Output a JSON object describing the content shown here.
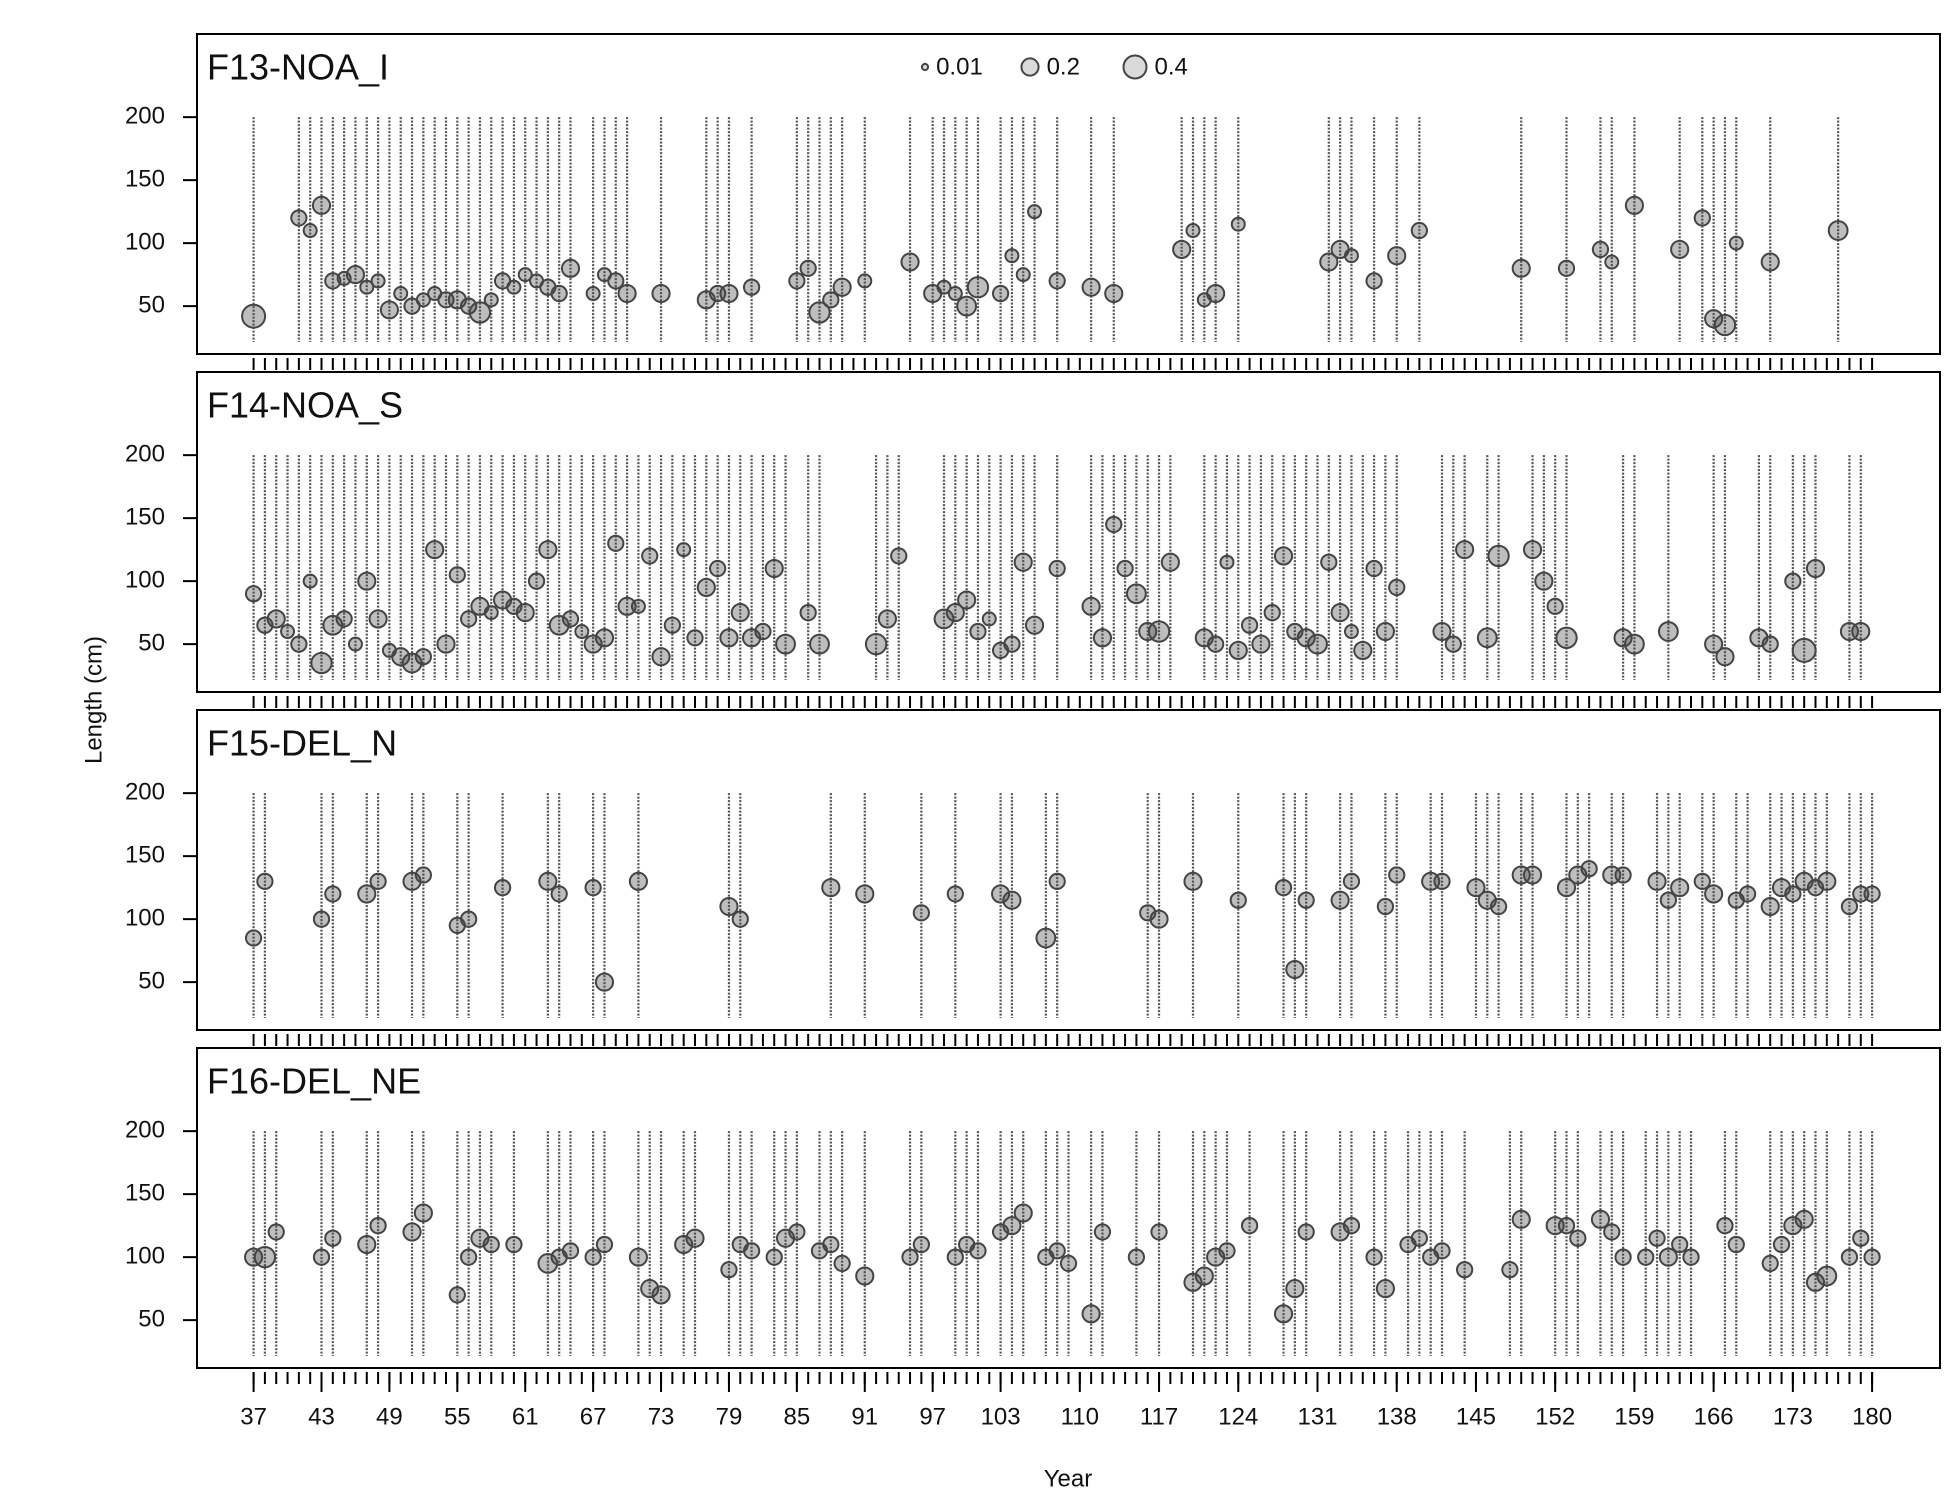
{
  "axes": {
    "xlabel": "Year",
    "ylabel": "Length (cm)",
    "xlim": [
      32,
      186
    ],
    "xticks": [
      37,
      43,
      49,
      55,
      61,
      67,
      73,
      79,
      85,
      91,
      97,
      103,
      110,
      117,
      124,
      131,
      138,
      145,
      152,
      159,
      166,
      173,
      180
    ]
  },
  "chart_data": [
    {
      "type": "bubble",
      "title": "F13-NOA_I",
      "color": "#444444",
      "ylim": [
        12,
        266
      ],
      "yticks": [
        50,
        100,
        150,
        200
      ],
      "legend_sizes": [
        0.01,
        0.2,
        0.4
      ],
      "x": [
        37,
        41,
        42,
        43,
        44,
        45,
        46,
        47,
        48,
        49,
        50,
        51,
        52,
        53,
        54,
        55,
        56,
        57,
        58,
        59,
        60,
        61,
        62,
        63,
        64,
        65,
        67,
        68,
        69,
        70,
        73,
        77,
        78,
        79,
        81,
        85,
        86,
        87,
        88,
        89,
        91,
        95,
        97,
        98,
        99,
        100,
        101,
        103,
        104,
        105,
        106,
        108,
        111,
        113,
        119,
        120,
        121,
        122,
        124,
        132,
        133,
        134,
        136,
        138,
        140,
        149,
        153,
        156,
        157,
        159,
        163,
        165,
        166,
        167,
        168,
        171,
        177
      ],
      "values": [
        42,
        120,
        110,
        130,
        70,
        72,
        75,
        65,
        70,
        47,
        60,
        50,
        55,
        60,
        55,
        55,
        50,
        45,
        55,
        70,
        65,
        75,
        70,
        65,
        60,
        80,
        60,
        75,
        70,
        60,
        60,
        55,
        60,
        60,
        65,
        70,
        80,
        45,
        55,
        65,
        70,
        85,
        60,
        65,
        60,
        50,
        65,
        60,
        90,
        75,
        125,
        70,
        65,
        60,
        95,
        110,
        55,
        60,
        115,
        85,
        95,
        90,
        70,
        90,
        110,
        80,
        80,
        95,
        85,
        130,
        95,
        120,
        40,
        35,
        100,
        85,
        110
      ],
      "sizes": [
        0.4,
        0.15,
        0.1,
        0.2,
        0.15,
        0.1,
        0.2,
        0.1,
        0.1,
        0.2,
        0.1,
        0.15,
        0.1,
        0.1,
        0.15,
        0.2,
        0.15,
        0.3,
        0.1,
        0.15,
        0.1,
        0.1,
        0.1,
        0.15,
        0.15,
        0.2,
        0.1,
        0.1,
        0.15,
        0.2,
        0.2,
        0.2,
        0.15,
        0.2,
        0.15,
        0.15,
        0.15,
        0.3,
        0.15,
        0.2,
        0.1,
        0.2,
        0.2,
        0.1,
        0.1,
        0.25,
        0.3,
        0.15,
        0.1,
        0.1,
        0.1,
        0.15,
        0.2,
        0.2,
        0.2,
        0.1,
        0.1,
        0.2,
        0.1,
        0.2,
        0.2,
        0.1,
        0.15,
        0.2,
        0.15,
        0.2,
        0.15,
        0.15,
        0.1,
        0.2,
        0.2,
        0.15,
        0.2,
        0.3,
        0.1,
        0.2,
        0.25
      ]
    },
    {
      "type": "bubble",
      "title": "F14-NOA_S",
      "color": "#444444",
      "ylim": [
        12,
        266
      ],
      "yticks": [
        50,
        100,
        150,
        200
      ],
      "x": [
        37,
        38,
        39,
        40,
        41,
        42,
        43,
        44,
        45,
        46,
        47,
        48,
        49,
        50,
        51,
        52,
        53,
        54,
        55,
        56,
        57,
        58,
        59,
        60,
        61,
        62,
        63,
        64,
        65,
        66,
        67,
        68,
        69,
        70,
        71,
        72,
        73,
        74,
        75,
        76,
        77,
        78,
        79,
        80,
        81,
        82,
        83,
        84,
        86,
        87,
        92,
        93,
        94,
        98,
        99,
        100,
        101,
        102,
        103,
        104,
        105,
        106,
        108,
        111,
        112,
        113,
        114,
        115,
        116,
        117,
        118,
        121,
        122,
        123,
        124,
        125,
        126,
        127,
        128,
        129,
        130,
        131,
        132,
        133,
        134,
        135,
        136,
        137,
        138,
        142,
        143,
        144,
        146,
        147,
        150,
        151,
        152,
        153,
        158,
        159,
        162,
        166,
        167,
        170,
        171,
        173,
        174,
        175,
        178,
        179
      ],
      "values": [
        90,
        65,
        70,
        60,
        50,
        100,
        35,
        65,
        70,
        50,
        100,
        70,
        45,
        40,
        35,
        40,
        125,
        50,
        105,
        70,
        80,
        75,
        85,
        80,
        75,
        100,
        125,
        65,
        70,
        60,
        50,
        55,
        130,
        80,
        80,
        120,
        40,
        65,
        125,
        55,
        95,
        110,
        55,
        75,
        55,
        60,
        110,
        50,
        75,
        50,
        50,
        70,
        120,
        70,
        75,
        85,
        60,
        70,
        45,
        50,
        115,
        65,
        110,
        80,
        55,
        145,
        110,
        90,
        60,
        60,
        115,
        55,
        50,
        115,
        45,
        65,
        50,
        75,
        120,
        60,
        55,
        50,
        115,
        75,
        60,
        45,
        110,
        60,
        95,
        60,
        50,
        125,
        55,
        120,
        125,
        100,
        80,
        55,
        55,
        50,
        60,
        50,
        40,
        55,
        50,
        100,
        45,
        110,
        60,
        60
      ],
      "sizes": [
        0.15,
        0.15,
        0.2,
        0.1,
        0.15,
        0.1,
        0.3,
        0.25,
        0.15,
        0.1,
        0.2,
        0.2,
        0.1,
        0.2,
        0.25,
        0.15,
        0.2,
        0.2,
        0.15,
        0.15,
        0.2,
        0.1,
        0.2,
        0.15,
        0.2,
        0.15,
        0.2,
        0.25,
        0.15,
        0.1,
        0.2,
        0.2,
        0.15,
        0.2,
        0.1,
        0.15,
        0.2,
        0.15,
        0.1,
        0.15,
        0.2,
        0.15,
        0.2,
        0.2,
        0.2,
        0.15,
        0.2,
        0.25,
        0.15,
        0.25,
        0.3,
        0.2,
        0.15,
        0.25,
        0.2,
        0.2,
        0.15,
        0.1,
        0.15,
        0.15,
        0.2,
        0.2,
        0.15,
        0.2,
        0.2,
        0.15,
        0.15,
        0.25,
        0.2,
        0.3,
        0.2,
        0.2,
        0.15,
        0.1,
        0.2,
        0.15,
        0.2,
        0.15,
        0.2,
        0.15,
        0.2,
        0.25,
        0.15,
        0.2,
        0.1,
        0.2,
        0.15,
        0.2,
        0.15,
        0.2,
        0.15,
        0.2,
        0.25,
        0.3,
        0.2,
        0.2,
        0.15,
        0.3,
        0.2,
        0.25,
        0.25,
        0.2,
        0.2,
        0.2,
        0.15,
        0.15,
        0.4,
        0.2,
        0.2,
        0.2
      ]
    },
    {
      "type": "bubble",
      "title": "F15-DEL_N",
      "color": "#444444",
      "ylim": [
        12,
        266
      ],
      "yticks": [
        50,
        100,
        150,
        200
      ],
      "x": [
        37,
        38,
        43,
        44,
        47,
        48,
        51,
        52,
        55,
        56,
        59,
        63,
        64,
        67,
        68,
        71,
        79,
        80,
        88,
        91,
        96,
        99,
        103,
        104,
        107,
        108,
        116,
        117,
        120,
        124,
        128,
        129,
        130,
        133,
        134,
        137,
        138,
        141,
        142,
        145,
        146,
        147,
        149,
        150,
        153,
        154,
        155,
        157,
        158,
        161,
        162,
        163,
        165,
        166,
        168,
        169,
        171,
        172,
        173,
        174,
        175,
        176,
        178,
        179,
        180
      ],
      "values": [
        85,
        130,
        100,
        120,
        120,
        130,
        130,
        135,
        95,
        100,
        125,
        130,
        120,
        125,
        50,
        130,
        110,
        100,
        125,
        120,
        105,
        120,
        120,
        115,
        85,
        130,
        105,
        100,
        130,
        115,
        125,
        60,
        115,
        115,
        130,
        110,
        135,
        130,
        130,
        125,
        115,
        110,
        135,
        135,
        125,
        135,
        140,
        135,
        135,
        130,
        115,
        125,
        130,
        120,
        115,
        120,
        110,
        125,
        120,
        130,
        125,
        130,
        110,
        120,
        120
      ],
      "sizes": [
        0.15,
        0.15,
        0.15,
        0.15,
        0.2,
        0.15,
        0.2,
        0.15,
        0.15,
        0.15,
        0.15,
        0.2,
        0.15,
        0.15,
        0.2,
        0.2,
        0.2,
        0.15,
        0.2,
        0.2,
        0.15,
        0.15,
        0.2,
        0.2,
        0.25,
        0.15,
        0.15,
        0.2,
        0.2,
        0.15,
        0.15,
        0.2,
        0.15,
        0.2,
        0.15,
        0.15,
        0.15,
        0.2,
        0.15,
        0.2,
        0.2,
        0.15,
        0.2,
        0.2,
        0.2,
        0.2,
        0.15,
        0.2,
        0.15,
        0.2,
        0.15,
        0.2,
        0.15,
        0.2,
        0.15,
        0.15,
        0.2,
        0.2,
        0.15,
        0.2,
        0.15,
        0.2,
        0.15,
        0.15,
        0.15
      ]
    },
    {
      "type": "bubble",
      "title": "F16-DEL_NE",
      "color": "#444444",
      "ylim": [
        12,
        266
      ],
      "yticks": [
        50,
        100,
        150,
        200
      ],
      "x": [
        37,
        38,
        39,
        43,
        44,
        47,
        48,
        51,
        52,
        55,
        56,
        57,
        58,
        60,
        63,
        64,
        65,
        67,
        68,
        71,
        72,
        73,
        75,
        76,
        79,
        80,
        81,
        83,
        84,
        85,
        87,
        88,
        89,
        91,
        95,
        96,
        99,
        100,
        101,
        103,
        104,
        105,
        107,
        108,
        109,
        111,
        112,
        115,
        117,
        120,
        121,
        122,
        123,
        125,
        128,
        129,
        130,
        133,
        134,
        136,
        137,
        139,
        140,
        141,
        142,
        144,
        148,
        149,
        152,
        153,
        154,
        156,
        157,
        158,
        160,
        161,
        162,
        163,
        164,
        167,
        168,
        171,
        172,
        173,
        174,
        175,
        176,
        178,
        179,
        180
      ],
      "values": [
        100,
        100,
        120,
        100,
        115,
        110,
        125,
        120,
        135,
        70,
        100,
        115,
        110,
        110,
        95,
        100,
        105,
        100,
        110,
        100,
        75,
        70,
        110,
        115,
        90,
        110,
        105,
        100,
        115,
        120,
        105,
        110,
        95,
        85,
        100,
        110,
        100,
        110,
        105,
        120,
        125,
        135,
        100,
        105,
        95,
        55,
        120,
        100,
        120,
        80,
        85,
        100,
        105,
        125,
        55,
        75,
        120,
        120,
        125,
        100,
        75,
        110,
        115,
        100,
        105,
        90,
        90,
        130,
        125,
        125,
        115,
        130,
        120,
        100,
        100,
        115,
        100,
        110,
        100,
        125,
        110,
        95,
        110,
        125,
        130,
        80,
        85,
        100,
        115,
        100
      ],
      "sizes": [
        0.2,
        0.3,
        0.15,
        0.15,
        0.15,
        0.2,
        0.15,
        0.2,
        0.2,
        0.15,
        0.15,
        0.2,
        0.15,
        0.15,
        0.25,
        0.15,
        0.15,
        0.15,
        0.15,
        0.2,
        0.2,
        0.2,
        0.2,
        0.2,
        0.15,
        0.15,
        0.15,
        0.15,
        0.2,
        0.15,
        0.15,
        0.15,
        0.15,
        0.2,
        0.15,
        0.15,
        0.15,
        0.15,
        0.15,
        0.15,
        0.2,
        0.2,
        0.15,
        0.15,
        0.15,
        0.2,
        0.15,
        0.15,
        0.15,
        0.2,
        0.2,
        0.2,
        0.15,
        0.15,
        0.2,
        0.2,
        0.15,
        0.2,
        0.15,
        0.15,
        0.2,
        0.15,
        0.15,
        0.15,
        0.15,
        0.15,
        0.15,
        0.2,
        0.2,
        0.15,
        0.15,
        0.2,
        0.15,
        0.15,
        0.15,
        0.15,
        0.2,
        0.15,
        0.15,
        0.15,
        0.15,
        0.15,
        0.15,
        0.2,
        0.2,
        0.2,
        0.25,
        0.15,
        0.15,
        0.15
      ]
    }
  ]
}
